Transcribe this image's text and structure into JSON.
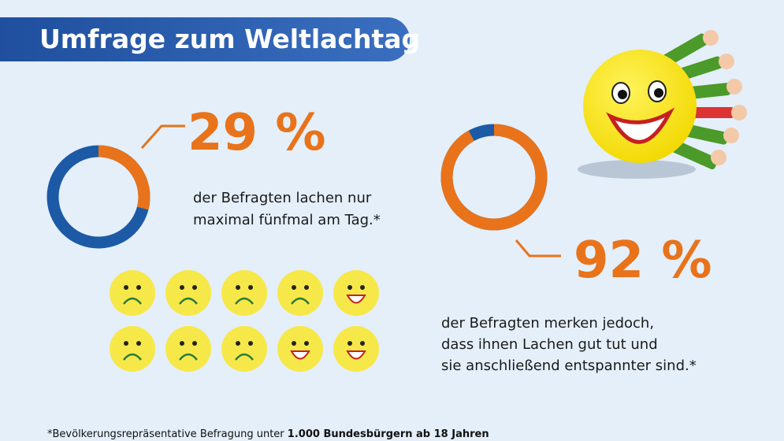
{
  "title": "Umfrage zum Weltlachtag",
  "stats": [
    {
      "value": 29,
      "value_label": "29 %",
      "text": [
        "der Befragten lachen nur",
        "maximal fünfmal am Tag.*"
      ]
    },
    {
      "value": 92,
      "value_label": "92 %",
      "text": [
        "der Befragten merken jedoch,",
        "dass ihnen Lachen gut tut und",
        "sie anschließend entspannter sind.*"
      ]
    }
  ],
  "footnote": {
    "text": "*Bevölkerungsrepräsentative Befragung unter ",
    "bold": "1.000 Bundesbürgern ab 18 Jahren"
  }
}
